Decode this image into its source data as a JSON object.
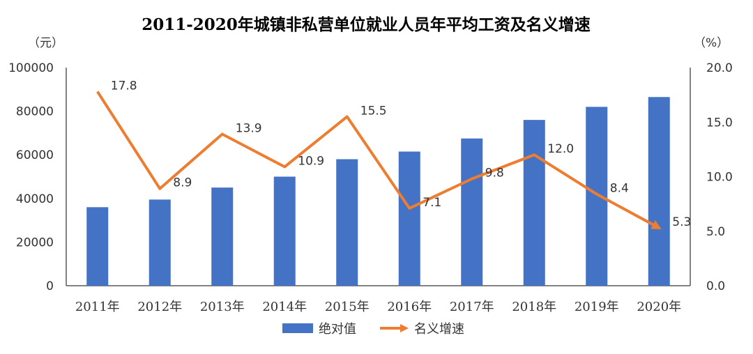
{
  "chart_data": {
    "type": "bar",
    "title": "2011-2020年城镇非私营单位就业人员年平均工资及名义增速",
    "categories": [
      "2011年",
      "2012年",
      "2013年",
      "2014年",
      "2015年",
      "2016年",
      "2017年",
      "2018年",
      "2019年",
      "2020年"
    ],
    "left_unit": "（元）",
    "right_unit": "（%）",
    "left_ticks": [
      "0",
      "20000",
      "40000",
      "60000",
      "80000",
      "100000"
    ],
    "right_ticks": [
      "0.0",
      "5.0",
      "10.0",
      "15.0",
      "20.0"
    ],
    "ylim_left": [
      0,
      100000
    ],
    "ylim_right": [
      0,
      20
    ],
    "series": [
      {
        "name": "绝对值",
        "type": "bar",
        "axis": "left",
        "color": "#4472C4",
        "values": [
          36000,
          39500,
          45000,
          50000,
          58000,
          61500,
          67500,
          76000,
          82000,
          86500
        ]
      },
      {
        "name": "名义增速",
        "type": "line",
        "axis": "right",
        "color": "#ED7D31",
        "values": [
          17.8,
          8.9,
          13.9,
          10.9,
          15.5,
          7.1,
          9.8,
          12.0,
          8.4,
          5.3
        ],
        "labels": [
          "17.8",
          "8.9",
          "13.9",
          "10.9",
          "15.5",
          "7.1",
          "9.8",
          "12.0",
          "8.4",
          "5.3"
        ]
      }
    ],
    "legend_position": "bottom",
    "grid": false
  }
}
